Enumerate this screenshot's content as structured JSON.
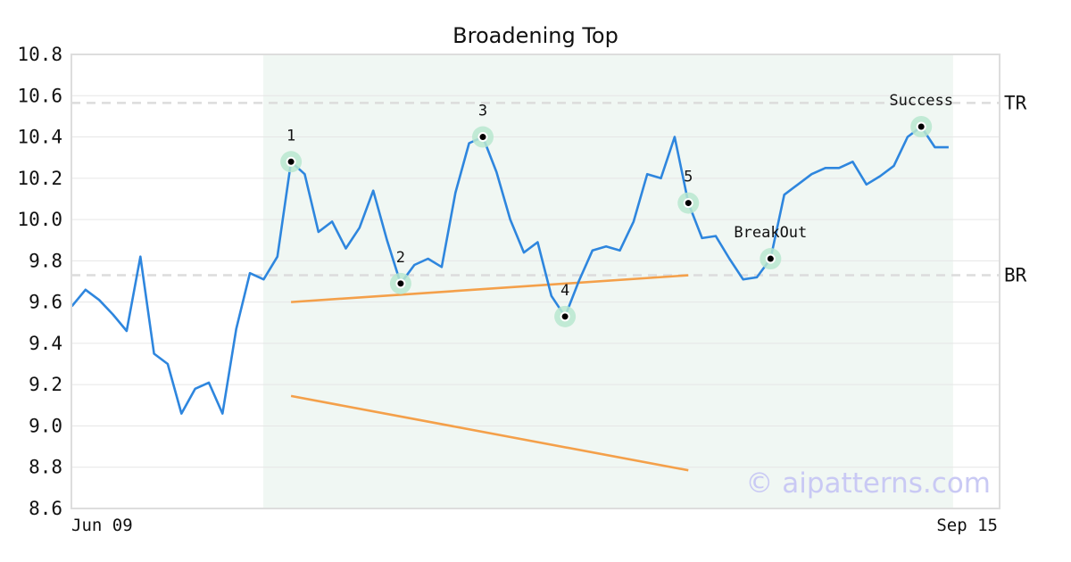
{
  "chart_data": {
    "type": "line",
    "title": "Broadening Top",
    "xlabel": "",
    "ylabel": "",
    "ylim": [
      8.6,
      10.8
    ],
    "yticks": [
      "10.8",
      "10.6",
      "10.4",
      "10.2",
      "10.0",
      "9.8",
      "9.6",
      "9.4",
      "9.2",
      "9.0",
      "8.8",
      "8.6"
    ],
    "xtick_labels": [
      "Jun 09",
      "Sep 15"
    ],
    "grid": true,
    "series": [
      {
        "color": "#2e86de",
        "values": [
          9.58,
          9.66,
          9.61,
          9.54,
          9.46,
          9.82,
          9.35,
          9.3,
          9.06,
          9.18,
          9.21,
          9.06,
          9.47,
          9.74,
          9.71,
          9.82,
          10.28,
          10.22,
          9.94,
          9.99,
          9.86,
          9.96,
          10.14,
          9.9,
          9.69,
          9.78,
          9.81,
          9.77,
          10.13,
          10.37,
          10.4,
          10.23,
          10.0,
          9.84,
          9.89,
          9.63,
          9.53,
          9.7,
          9.85,
          9.87,
          9.85,
          9.99,
          10.22,
          10.2,
          10.4,
          10.08,
          9.91,
          9.92,
          9.81,
          9.71,
          9.72,
          9.81,
          10.12,
          10.17,
          10.22,
          10.25,
          10.25,
          10.28,
          10.17,
          10.21,
          10.26,
          10.4,
          10.45,
          10.35,
          10.35
        ]
      }
    ],
    "pattern_region": {
      "start_index": 14,
      "end_index": 64,
      "color": "#f0f7f3"
    },
    "levels": [
      {
        "label": "TR",
        "value": 10.565
      },
      {
        "label": "BR",
        "value": 9.73
      }
    ],
    "trendlines": [
      {
        "color": "#f4a04a",
        "from": {
          "index": 16,
          "value": 9.6
        },
        "to": {
          "index": 45,
          "value": 9.73
        }
      },
      {
        "color": "#f4a04a",
        "from": {
          "index": 16,
          "value": 9.145
        },
        "to": {
          "index": 45,
          "value": 8.785
        }
      }
    ],
    "points": [
      {
        "label": "1",
        "index": 16,
        "value": 10.28
      },
      {
        "label": "2",
        "index": 24,
        "value": 9.69
      },
      {
        "label": "3",
        "index": 30,
        "value": 10.4
      },
      {
        "label": "4",
        "index": 36,
        "value": 9.53
      },
      {
        "label": "5",
        "index": 45,
        "value": 10.08
      },
      {
        "label": "BreakOut",
        "index": 51,
        "value": 9.81
      },
      {
        "label": "Success",
        "index": 62,
        "value": 10.45
      }
    ],
    "watermark": "© aipatterns.com"
  }
}
